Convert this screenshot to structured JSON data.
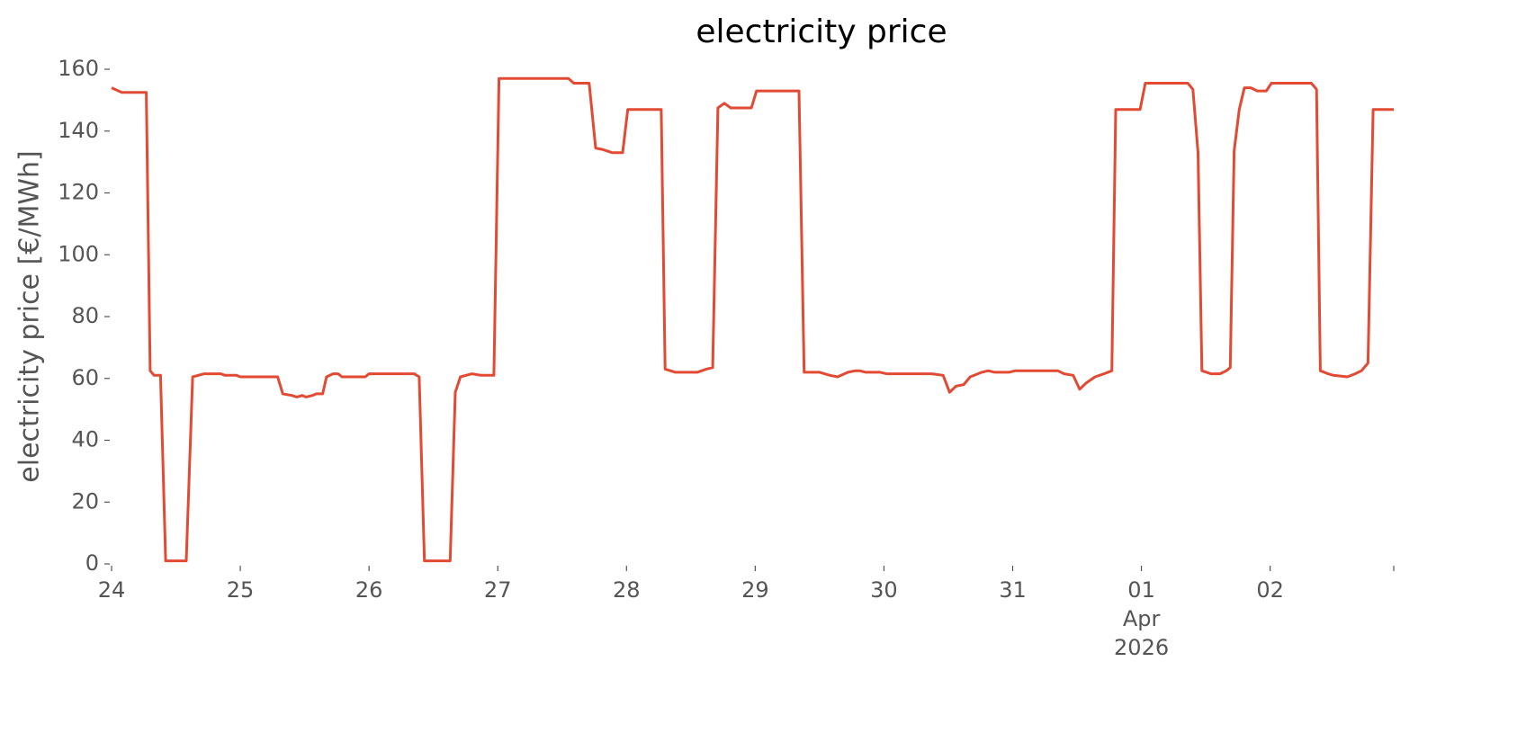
{
  "chart_data": {
    "type": "line",
    "title": "electricity price",
    "ylabel": "electricity price [€/MWh]",
    "x": [
      0,
      0.08,
      0.27,
      0.3,
      0.33,
      0.38,
      0.42,
      0.58,
      0.63,
      0.72,
      0.85,
      0.88,
      0.97,
      1.0,
      1.29,
      1.33,
      1.4,
      1.44,
      1.48,
      1.51,
      1.56,
      1.59,
      1.64,
      1.67,
      1.72,
      1.76,
      1.79,
      1.97,
      2.0,
      2.35,
      2.39,
      2.43,
      2.63,
      2.67,
      2.71,
      2.8,
      2.87,
      2.97,
      3.01,
      3.55,
      3.59,
      3.71,
      3.76,
      3.82,
      3.89,
      3.97,
      4.01,
      4.27,
      4.3,
      4.38,
      4.55,
      4.62,
      4.67,
      4.71,
      4.76,
      4.81,
      4.97,
      5.01,
      5.34,
      5.38,
      5.5,
      5.58,
      5.64,
      5.72,
      5.78,
      5.81,
      5.86,
      5.97,
      6.02,
      6.37,
      6.46,
      6.51,
      6.56,
      6.62,
      6.67,
      6.76,
      6.81,
      6.86,
      6.97,
      7.02,
      7.35,
      7.4,
      7.47,
      7.52,
      7.57,
      7.64,
      7.71,
      7.77,
      7.8,
      7.99,
      8.03,
      8.36,
      8.4,
      8.44,
      8.47,
      8.54,
      8.61,
      8.66,
      8.69,
      8.72,
      8.76,
      8.8,
      8.85,
      8.9,
      8.97,
      9.01,
      9.32,
      9.36,
      9.39,
      9.45,
      9.49,
      9.6,
      9.66,
      9.71,
      9.76,
      9.8,
      9.96
    ],
    "series": [
      {
        "name": "electricity price",
        "color": "#e24a33",
        "values": [
          154,
          152.5,
          152.5,
          62.5,
          61,
          61,
          1,
          1,
          60.5,
          61.5,
          61.5,
          61,
          61,
          60.5,
          60.5,
          55,
          54.5,
          54,
          54.5,
          54,
          54.5,
          55,
          55,
          60.5,
          61.5,
          61.5,
          60.5,
          60.5,
          61.5,
          61.5,
          60.5,
          1,
          1,
          55.5,
          60.5,
          61.5,
          61,
          61,
          157,
          157,
          155.5,
          155.5,
          134.5,
          134,
          133,
          133,
          147,
          147,
          63,
          62,
          62,
          63,
          63.5,
          147.5,
          149,
          147.5,
          147.5,
          153,
          153,
          62,
          62,
          61,
          60.5,
          62,
          62.5,
          62.5,
          62,
          62,
          61.5,
          61.5,
          61,
          55.5,
          57.5,
          58,
          60.5,
          62,
          62.5,
          62,
          62,
          62.5,
          62.5,
          61.5,
          61,
          56.5,
          58.5,
          60.5,
          61.5,
          62.5,
          147,
          147,
          155.5,
          155.5,
          153.5,
          133,
          62.5,
          61.5,
          61.5,
          62.5,
          63.5,
          133.5,
          147,
          154,
          154,
          153,
          153,
          155.5,
          155.5,
          153.5,
          62.5,
          61.5,
          61,
          60.5,
          61.5,
          62.5,
          65,
          147,
          147
        ]
      }
    ],
    "xlim": [
      0,
      9.96
    ],
    "ylim": [
      0,
      160
    ],
    "xticks": [
      {
        "value": 0,
        "label": "24"
      },
      {
        "value": 1,
        "label": "25"
      },
      {
        "value": 2,
        "label": "26"
      },
      {
        "value": 3,
        "label": "27"
      },
      {
        "value": 4,
        "label": "28"
      },
      {
        "value": 5,
        "label": "29"
      },
      {
        "value": 6,
        "label": "30"
      },
      {
        "value": 7,
        "label": "31"
      },
      {
        "value": 8,
        "label": "01\nApr\n2026"
      },
      {
        "value": 9,
        "label": "02"
      },
      {
        "value": 9.96,
        "label": null
      }
    ],
    "yticks": [
      0,
      20,
      40,
      60,
      80,
      100,
      120,
      140,
      160
    ],
    "grid": false
  }
}
